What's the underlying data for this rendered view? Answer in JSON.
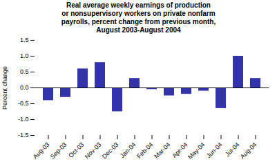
{
  "chart_data": {
    "type": "bar",
    "title": "Real average weekly earnings of production\nor nonsupervisory workers on private nonfarm\npayrolls, percent change from previous month,\nAugust 2003-August 2004",
    "categories": [
      "Aug-03",
      "Sep-03",
      "Oct-03",
      "Nov-03",
      "Dec-03",
      "Jan-04",
      "Feb-04",
      "Mar-04",
      "Apr-04",
      "May-04",
      "Jun-04",
      "Jul-04",
      "Aug-04"
    ],
    "values": [
      -0.4,
      -0.3,
      0.6,
      0.8,
      -0.75,
      0.3,
      -0.05,
      -0.25,
      -0.2,
      -0.1,
      -0.65,
      1.0,
      0.3
    ],
    "color": "#3333aa",
    "ylabel": "Percent change",
    "ylim": [
      -1.5,
      1.5
    ],
    "yticks": [
      -1.5,
      {
        "value": -1,
        "label": "-1.0"
      },
      -0.5,
      {
        "value": 0,
        "label": "0.0"
      },
      0.5,
      {
        "value": 1,
        "label": "1.0"
      },
      1.5
    ],
    "grid": false
  }
}
